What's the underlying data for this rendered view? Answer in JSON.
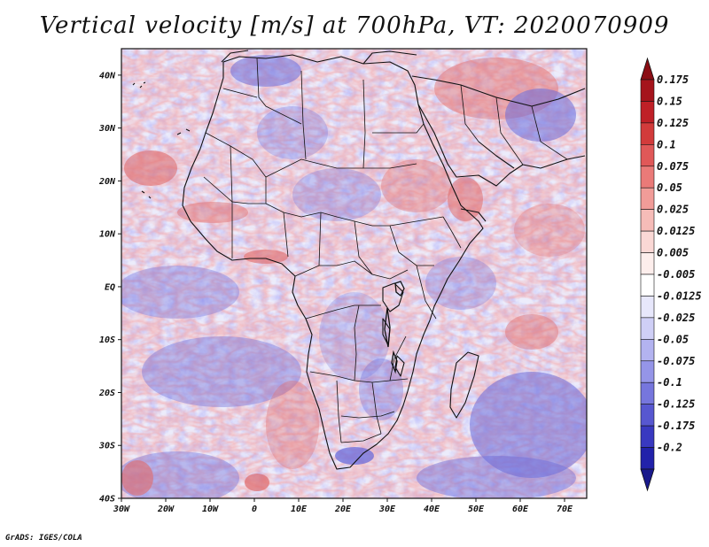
{
  "title": "Vertical velocity [m/s] at 700hPa, VT: 2020070909",
  "credit": "GrADS: IGES/COLA",
  "map": {
    "lon_range": [
      -30,
      75
    ],
    "lat_range": [
      -40,
      45
    ],
    "lon_labels": [
      {
        "lon": -30,
        "label": "30W"
      },
      {
        "lon": -20,
        "label": "20W"
      },
      {
        "lon": -10,
        "label": "10W"
      },
      {
        "lon": 0,
        "label": "0"
      },
      {
        "lon": 10,
        "label": "10E"
      },
      {
        "lon": 20,
        "label": "20E"
      },
      {
        "lon": 30,
        "label": "30E"
      },
      {
        "lon": 40,
        "label": "40E"
      },
      {
        "lon": 50,
        "label": "50E"
      },
      {
        "lon": 60,
        "label": "60E"
      },
      {
        "lon": 70,
        "label": "70E"
      }
    ],
    "lat_labels": [
      {
        "lat": 40,
        "label": "40N"
      },
      {
        "lat": 30,
        "label": "30N"
      },
      {
        "lat": 20,
        "label": "20N"
      },
      {
        "lat": 10,
        "label": "10N"
      },
      {
        "lat": 0,
        "label": "EQ"
      },
      {
        "lat": -10,
        "label": "10S"
      },
      {
        "lat": -20,
        "label": "20S"
      },
      {
        "lat": -30,
        "label": "30S"
      },
      {
        "lat": -40,
        "label": "40S"
      }
    ]
  },
  "colorbar": {
    "levels": [
      {
        "label": "0.175",
        "color": "#a5141c"
      },
      {
        "label": "0.15",
        "color": "#bf2027"
      },
      {
        "label": "0.125",
        "color": "#d23b3b"
      },
      {
        "label": "0.1",
        "color": "#e05858"
      },
      {
        "label": "0.075",
        "color": "#ea7a78"
      },
      {
        "label": "0.05",
        "color": "#f19c98"
      },
      {
        "label": "0.025",
        "color": "#f6bcb8"
      },
      {
        "label": "0.0125",
        "color": "#fad8d5"
      },
      {
        "label": "0.005",
        "color": "#fdeeec"
      },
      {
        "label": "-0.005",
        "color": "#ffffff"
      },
      {
        "label": "-0.0125",
        "color": "#e7e7fb"
      },
      {
        "label": "-0.025",
        "color": "#cfcff6"
      },
      {
        "label": "-0.05",
        "color": "#b3b3f0"
      },
      {
        "label": "-0.075",
        "color": "#9595e8"
      },
      {
        "label": "-0.1",
        "color": "#7676dd"
      },
      {
        "label": "-0.125",
        "color": "#5757d0"
      },
      {
        "label": "-0.175",
        "color": "#3939c0"
      },
      {
        "label": "-0.2",
        "color": "#2222aa"
      }
    ],
    "top_arrow_color": "#8b0d14",
    "bottom_arrow_color": "#1a1a8c"
  }
}
